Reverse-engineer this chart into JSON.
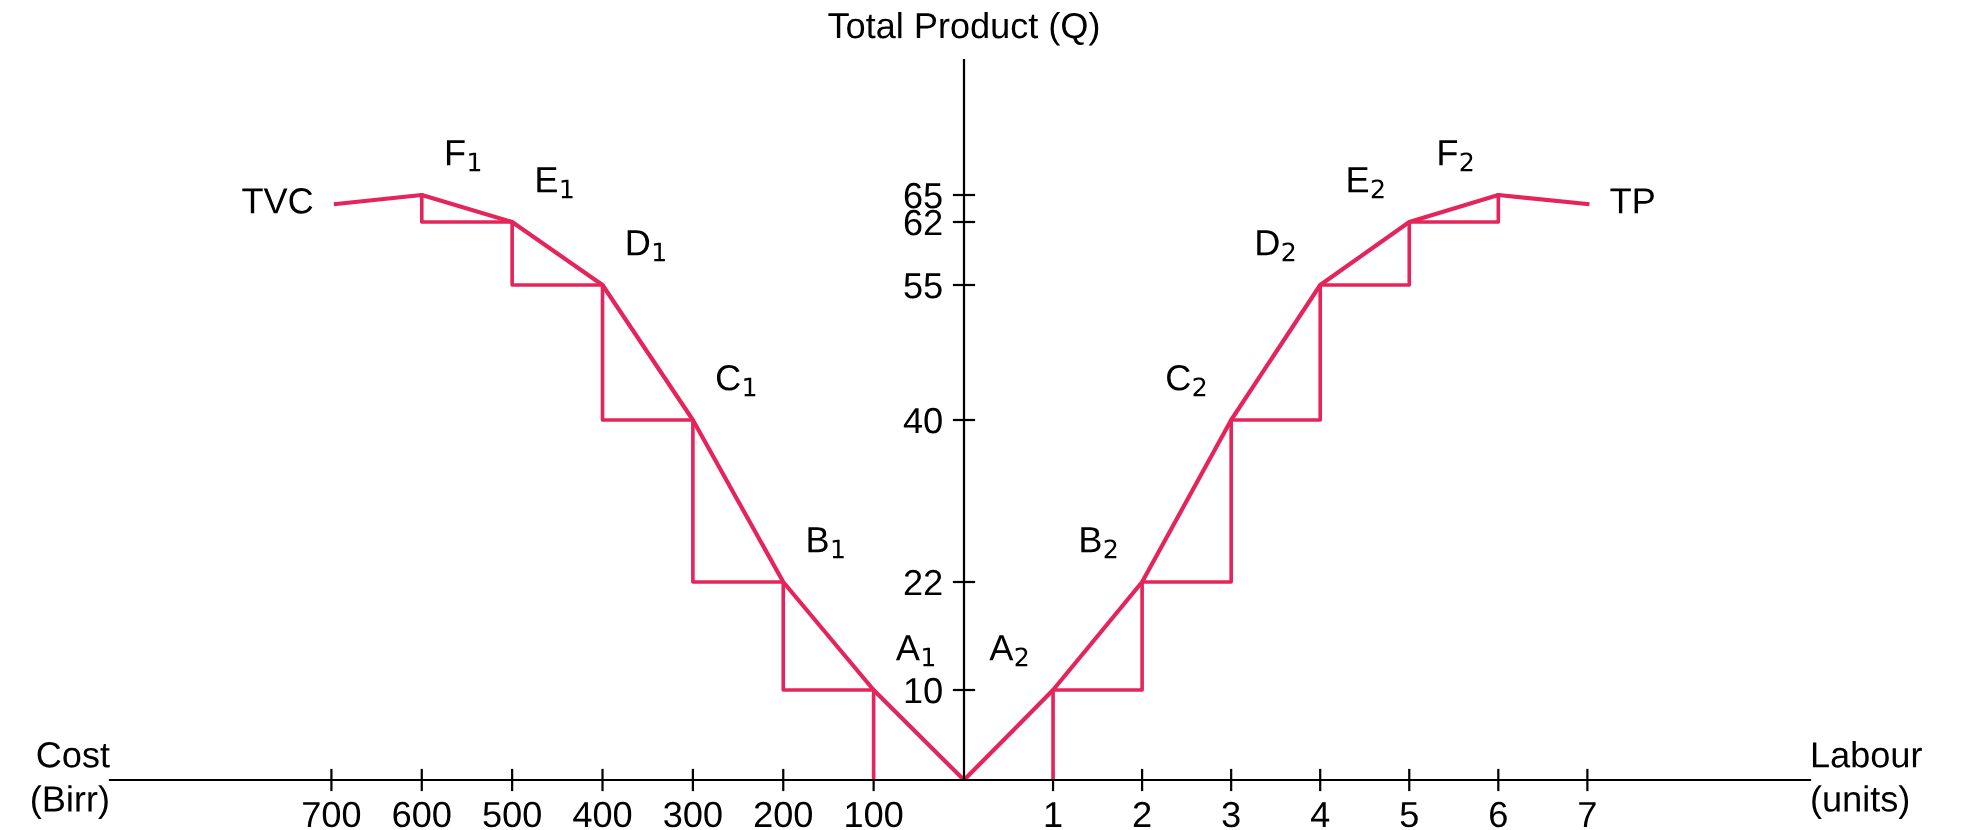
{
  "chart_data": [
    {
      "type": "line",
      "xlabel": "Cost\n(Birr)",
      "xlim": [
        945,
        0
      ],
      "xticks": [
        700,
        600,
        500,
        400,
        300,
        200,
        100
      ],
      "ylim": [
        0,
        80
      ],
      "tick_labels": "x",
      "grid": false,
      "legend": false,
      "marker": "none",
      "line_style": "solid",
      "series": [
        {
          "name": "TVC",
          "color": "#e4245a",
          "x": [
            0,
            100,
            200,
            300,
            400,
            500,
            600,
            695
          ],
          "values": [
            0,
            10,
            22,
            40,
            55,
            62,
            65,
            64
          ]
        },
        {
          "type": "step",
          "color": "#e4245a",
          "x": [
            100,
            100,
            200,
            300,
            400,
            500,
            600
          ],
          "values": [
            0,
            10,
            22,
            40,
            55,
            62,
            65
          ]
        }
      ],
      "annotations": [
        {
          "text": "A$_{1}$",
          "x": 100,
          "y": 10
        },
        {
          "text": "B$_{1}$",
          "x": 200,
          "y": 22
        },
        {
          "text": "C$_{1}$",
          "x": 300,
          "y": 40
        },
        {
          "text": "D$_{1}$",
          "x": 400,
          "y": 55
        },
        {
          "text": "E$_{1}$",
          "x": 500,
          "y": 62
        },
        {
          "text": "F$_{1}$",
          "x": 600,
          "y": 65
        }
      ]
    },
    {
      "type": "line",
      "xlabel": "Labour\n(units)",
      "ylabel": "Total Product (Q)",
      "xlim": [
        0,
        9.5
      ],
      "xticks": [
        1,
        2,
        3,
        4,
        5,
        6,
        7
      ],
      "ylim": [
        0,
        80
      ],
      "yticks": [
        10,
        22,
        40,
        55,
        62,
        65
      ],
      "grid": false,
      "legend": false,
      "marker": "none",
      "line_style": "solid",
      "series": [
        {
          "name": "TP",
          "color": "#e4245a",
          "x": [
            0,
            1,
            2,
            3,
            4,
            5,
            6,
            7
          ],
          "values": [
            0,
            10,
            22,
            40,
            55,
            62,
            65,
            64
          ]
        },
        {
          "type": "step",
          "color": "#e4245a",
          "x": [
            1,
            1,
            2,
            3,
            4,
            5,
            6
          ],
          "values": [
            0,
            10,
            22,
            40,
            55,
            62,
            65
          ]
        }
      ],
      "annotations": [
        {
          "text": "A$_{2}$",
          "x": 1,
          "y": 10
        },
        {
          "text": "B$_{2}$",
          "x": 2,
          "y": 22
        },
        {
          "text": "C$_{2}$",
          "x": 3,
          "y": 40
        },
        {
          "text": "D$_{2}$",
          "x": 4,
          "y": 55
        },
        {
          "text": "E$_{2}$",
          "x": 5,
          "y": 62
        },
        {
          "text": "F$_{2}$",
          "x": 6,
          "y": 65
        }
      ]
    }
  ]
}
